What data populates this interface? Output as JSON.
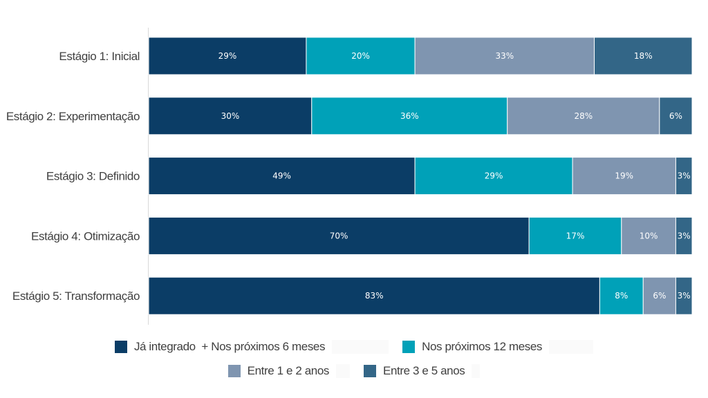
{
  "chart_data": {
    "type": "bar",
    "orientation": "horizontal",
    "stacked": true,
    "categories": [
      "Estágio 1: Inicial",
      "Estágio 2: Experimentação",
      "Estágio 3: Definido",
      "Estágio 4: Otimização",
      "Estágio 5: Transformação"
    ],
    "series": [
      {
        "name": "Já integrado  + Nos próximos 6 meses",
        "color": "#0b3d66",
        "values": [
          29,
          30,
          49,
          70,
          83
        ]
      },
      {
        "name": "Nos próximos 12 meses",
        "color": "#00a1b8",
        "values": [
          20,
          36,
          29,
          17,
          8
        ]
      },
      {
        "name": "Entre 1 e 2 anos",
        "color": "#7f95b0",
        "values": [
          33,
          28,
          19,
          10,
          6
        ]
      },
      {
        "name": "Entre 3 e 5 anos",
        "color": "#336687",
        "values": [
          18,
          6,
          3,
          3,
          3
        ]
      }
    ],
    "value_suffix": "%",
    "xlim": [
      0,
      100
    ],
    "grid": false,
    "legend_position": "bottom"
  }
}
